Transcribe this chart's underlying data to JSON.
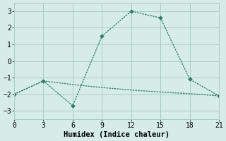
{
  "line1_x": [
    0,
    3,
    6,
    9,
    12,
    15,
    18,
    21
  ],
  "line1_y": [
    -2.0,
    -1.2,
    -2.7,
    1.5,
    3.0,
    2.6,
    -1.1,
    -2.1
  ],
  "line2_x": [
    0,
    3,
    6,
    9,
    12,
    15,
    18,
    21
  ],
  "line2_y": [
    -2.0,
    -1.2,
    -1.42,
    -1.6,
    -1.75,
    -1.87,
    -1.97,
    -2.1
  ],
  "line_color": "#2e7c6e",
  "bg_color": "#d6ece6",
  "grid_color": "#aaccc5",
  "xlabel": "Humidex (Indice chaleur)",
  "xlim": [
    0,
    21
  ],
  "ylim": [
    -3.5,
    3.5
  ],
  "xticks": [
    0,
    3,
    6,
    9,
    12,
    15,
    18,
    21
  ],
  "yticks": [
    -3,
    -2,
    -1,
    0,
    1,
    2,
    3
  ],
  "xlabel_fontsize": 7.5,
  "tick_fontsize": 7
}
